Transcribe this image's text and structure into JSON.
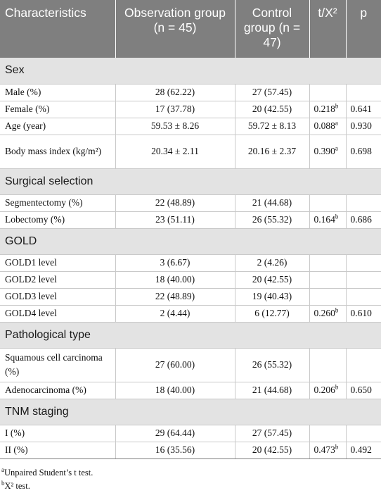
{
  "header": {
    "characteristics": "Characteristics",
    "observation": "Observation group (n = 45)",
    "control": "Control group (n = 47)",
    "stat": "t/X²",
    "p": "p"
  },
  "sections": [
    {
      "title": "Sex",
      "rows": [
        {
          "label": "Male (%)",
          "obs": "28 (62.22)",
          "ctrl": "27 (57.45)",
          "stat": "",
          "sup": "",
          "p": ""
        },
        {
          "label": "Female (%)",
          "obs": "17 (37.78)",
          "ctrl": "20 (42.55)",
          "stat": "0.218",
          "sup": "b",
          "p": "0.641"
        },
        {
          "label": "Age (year)",
          "obs": "59.53 ± 8.26",
          "ctrl": "59.72 ± 8.13",
          "stat": "0.088",
          "sup": "a",
          "p": "0.930"
        },
        {
          "label": "Body mass index (kg/m²)",
          "obs": "20.34 ± 2.11",
          "ctrl": "20.16 ± 2.37",
          "stat": "0.390",
          "sup": "a",
          "p": "0.698"
        }
      ]
    },
    {
      "title": "Surgical selection",
      "rows": [
        {
          "label": "Segmentectomy (%)",
          "obs": "22 (48.89)",
          "ctrl": "21 (44.68)",
          "stat": "",
          "sup": "",
          "p": ""
        },
        {
          "label": "Lobectomy (%)",
          "obs": "23 (51.11)",
          "ctrl": "26 (55.32)",
          "stat": "0.164",
          "sup": "b",
          "p": "0.686"
        }
      ]
    },
    {
      "title": "GOLD",
      "rows": [
        {
          "label": "GOLD1 level",
          "obs": "3 (6.67)",
          "ctrl": "2 (4.26)",
          "stat": "",
          "sup": "",
          "p": ""
        },
        {
          "label": "GOLD2 level",
          "obs": "18 (40.00)",
          "ctrl": "20 (42.55)",
          "stat": "",
          "sup": "",
          "p": ""
        },
        {
          "label": "GOLD3 level",
          "obs": "22 (48.89)",
          "ctrl": "19 (40.43)",
          "stat": "",
          "sup": "",
          "p": ""
        },
        {
          "label": "GOLD4 level",
          "obs": "2 (4.44)",
          "ctrl": "6 (12.77)",
          "stat": "0.260",
          "sup": "b",
          "p": "0.610"
        }
      ]
    },
    {
      "title": "Pathological type",
      "rows": [
        {
          "label": "Squamous cell carcinoma (%)",
          "obs": "27 (60.00)",
          "ctrl": "26 (55.32)",
          "stat": "",
          "sup": "",
          "p": ""
        },
        {
          "label": "Adenocarcinoma (%)",
          "obs": "18 (40.00)",
          "ctrl": "21 (44.68)",
          "stat": "0.206",
          "sup": "b",
          "p": "0.650"
        }
      ]
    },
    {
      "title": "TNM staging",
      "rows": [
        {
          "label": "I (%)",
          "obs": "29 (64.44)",
          "ctrl": "27 (57.45)",
          "stat": "",
          "sup": "",
          "p": ""
        },
        {
          "label": "II (%)",
          "obs": "16 (35.56)",
          "ctrl": "20 (42.55)",
          "stat": "0.473",
          "sup": "b",
          "p": "0.492"
        }
      ]
    }
  ],
  "footnotes": {
    "a_mark": "a",
    "a_text": "Unpaired Student’s t test.",
    "b_mark": "b",
    "b_text": "X² test."
  }
}
